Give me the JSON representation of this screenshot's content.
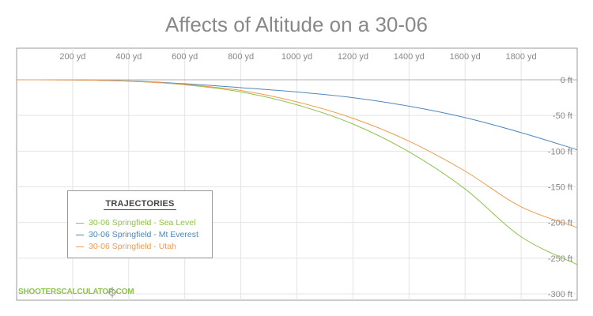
{
  "chart_data": {
    "type": "line",
    "title": "Affects of Altitude on a 30-06",
    "xlabel": "",
    "ylabel": "",
    "x_unit": "yd",
    "y_unit": "ft",
    "xlim": [
      0,
      2000
    ],
    "ylim": [
      -310,
      0
    ],
    "x_ticks": [
      200,
      400,
      600,
      800,
      1000,
      1200,
      1400,
      1600,
      1800
    ],
    "x_tick_labels": [
      "200 yd",
      "400 yd",
      "600 yd",
      "800 yd",
      "1000 yd",
      "1200 yd",
      "1400 yd",
      "1600 yd",
      "1800 yd"
    ],
    "y_ticks": [
      0,
      -50,
      -100,
      -150,
      -200,
      -250,
      -300
    ],
    "y_tick_labels": [
      "0 ft",
      "-50 ft",
      "-100 ft",
      "-150 ft",
      "-200 ft",
      "-250 ft",
      "-300 ft"
    ],
    "grid": true,
    "x_axis_position": "top",
    "y_axis_position": "right",
    "legend_position": "bottom-left",
    "x": [
      0,
      200,
      400,
      600,
      800,
      1000,
      1200,
      1400,
      1600,
      1800,
      2000
    ],
    "series": [
      {
        "name": "30-06 Springfield - Sea Level",
        "color": "#8cc24a",
        "values": [
          0,
          -0.2,
          -2,
          -7,
          -17,
          -35,
          -62,
          -101,
          -153,
          -220,
          -259
        ]
      },
      {
        "name": "30-06 Springfield - Mt Everest",
        "color": "#4f86bd",
        "values": [
          0,
          -0.2,
          -1.5,
          -5.5,
          -11,
          -17,
          -25,
          -37,
          -53,
          -74,
          -98
        ]
      },
      {
        "name": "30-06 Springfield - Utah",
        "color": "#f09a50",
        "values": [
          0,
          -0.2,
          -2,
          -6.5,
          -15,
          -31,
          -54,
          -86,
          -128,
          -178,
          -207
        ]
      }
    ]
  },
  "legend": {
    "title": "TRAJECTORIES"
  },
  "branding": {
    "text": "SHOOTERSCALCULATOR.COM",
    "icon": "crosshair-icon"
  }
}
